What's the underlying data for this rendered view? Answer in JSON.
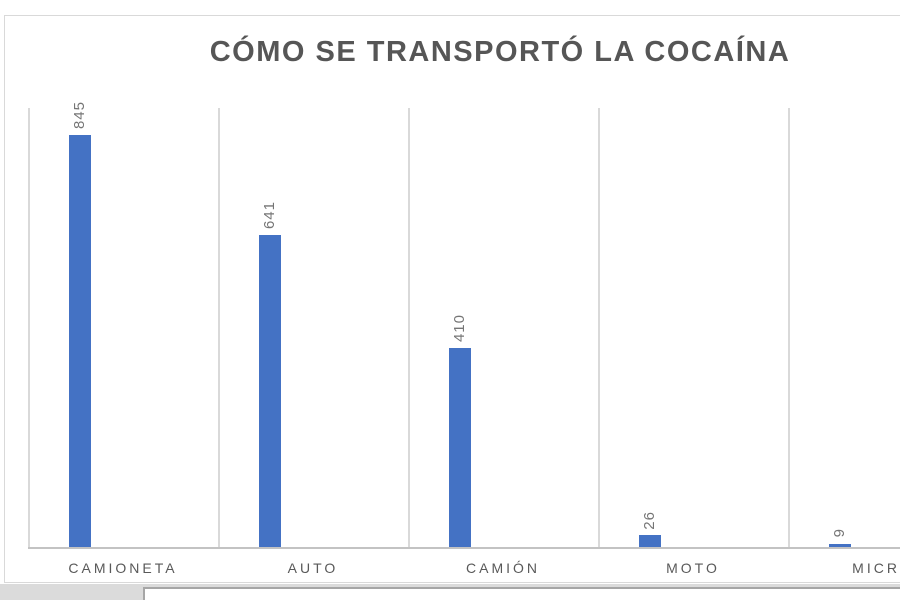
{
  "chart_data": {
    "type": "bar",
    "title": "CÓMO SE TRANSPORTÓ LA COCAÍNA",
    "categories": [
      "CAMIONETA",
      "AUTO",
      "CAMIÓN",
      "MOTO",
      "MICRO"
    ],
    "values": [
      845,
      641,
      410,
      26,
      9
    ],
    "xlabel": "",
    "ylabel": "",
    "ylim": [
      0,
      900
    ],
    "grid": "vertical category separators only",
    "legend": "none",
    "value_labels": "rotated 90° counterclockwise above each bar",
    "notes": "last category cut off at right edge of screenshot",
    "colors": {
      "bar": "#4472C4",
      "grid": "#D9D9D9",
      "axis": "#C3C3C3",
      "title": "#565656",
      "value-label": "#757575",
      "category-label": "#595959",
      "chart-border": "#D9D9D9",
      "page-strip": "#DBDBDB",
      "card-border": "#A6A6A6"
    }
  }
}
